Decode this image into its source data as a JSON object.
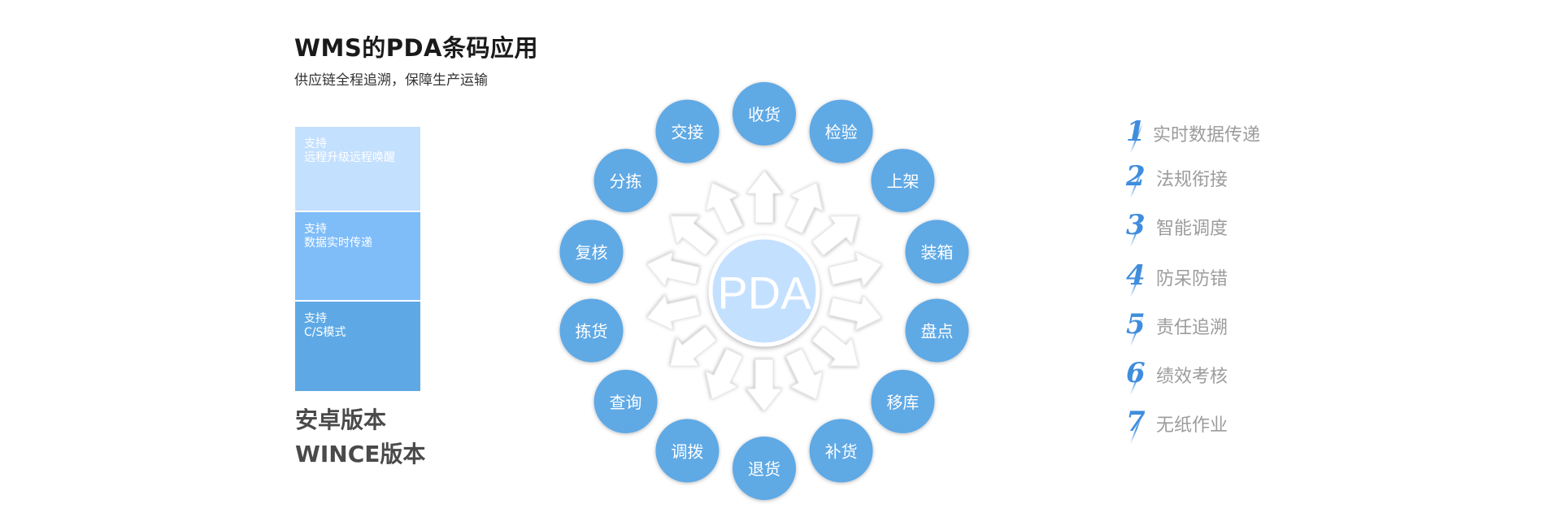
{
  "header": {
    "title": "WMS的PDA条码应用",
    "subtitle": "供应链全程追溯，保障生产运输"
  },
  "support_blocks": [
    {
      "line1": "支持",
      "line2": "远程升级远程唤醒",
      "color": "#c4e0ff"
    },
    {
      "line1": "支持",
      "line2": "数据实时传递",
      "color": "#7fbdf9"
    },
    {
      "line1": "支持",
      "line2": "C/S模式",
      "color": "#5ea9e5"
    }
  ],
  "versions": [
    "安卓版本",
    "WINCE版本"
  ],
  "hub": {
    "center_label": "PDA",
    "center_color": "#c4e0ff",
    "node_color": "#5ea9e5",
    "nodes": [
      "收货",
      "检验",
      "上架",
      "装箱",
      "盘点",
      "移库",
      "补货",
      "退货",
      "调拨",
      "查询",
      "拣货",
      "复核",
      "分拣",
      "交接"
    ]
  },
  "features": [
    {
      "num": "1",
      "label": "实时数据传递"
    },
    {
      "num": "2",
      "label": "法规衔接"
    },
    {
      "num": "3",
      "label": "智能调度"
    },
    {
      "num": "4",
      "label": "防呆防错"
    },
    {
      "num": "5",
      "label": "责任追溯"
    },
    {
      "num": "6",
      "label": "绩效考核"
    },
    {
      "num": "7",
      "label": "无纸作业"
    }
  ]
}
